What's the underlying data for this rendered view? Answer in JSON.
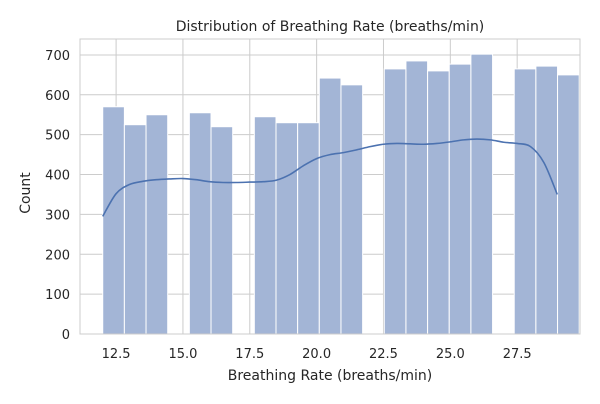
{
  "chart_data": {
    "type": "bar",
    "title": "Distribution of Breathing Rate (breaths/min)",
    "xlabel": "Breathing Rate (breaths/min)",
    "ylabel": "Count",
    "xlim": [
      11.15,
      29.85
    ],
    "ylim": [
      0,
      740
    ],
    "x_ticks": [
      12.5,
      15.0,
      17.5,
      20.0,
      22.5,
      25.0,
      27.5
    ],
    "x_tick_labels": [
      "12.5",
      "15.0",
      "17.5",
      "20.0",
      "22.5",
      "25.0",
      "27.5"
    ],
    "y_ticks": [
      0,
      100,
      200,
      300,
      400,
      500,
      600,
      700
    ],
    "y_tick_labels": [
      "0",
      "100",
      "200",
      "300",
      "400",
      "500",
      "600",
      "700"
    ],
    "grid": true,
    "bar_color": "#a3b5d6",
    "kde_color": "#4c72b0",
    "bins": [
      {
        "x0": 12.0,
        "x1": 12.81,
        "value": 570
      },
      {
        "x0": 12.81,
        "x1": 13.62,
        "value": 525
      },
      {
        "x0": 13.62,
        "x1": 14.43,
        "value": 550
      },
      {
        "x0": 14.43,
        "x1": 15.24,
        "value": 0
      },
      {
        "x0": 15.24,
        "x1": 16.05,
        "value": 555
      },
      {
        "x0": 16.05,
        "x1": 16.86,
        "value": 520
      },
      {
        "x0": 16.86,
        "x1": 17.67,
        "value": 0
      },
      {
        "x0": 17.67,
        "x1": 18.48,
        "value": 545
      },
      {
        "x0": 18.48,
        "x1": 19.29,
        "value": 530
      },
      {
        "x0": 19.29,
        "x1": 20.1,
        "value": 530
      },
      {
        "x0": 20.1,
        "x1": 20.91,
        "value": 642
      },
      {
        "x0": 20.91,
        "x1": 21.72,
        "value": 625
      },
      {
        "x0": 21.72,
        "x1": 22.53,
        "value": 0
      },
      {
        "x0": 22.53,
        "x1": 23.34,
        "value": 665
      },
      {
        "x0": 23.34,
        "x1": 24.15,
        "value": 685
      },
      {
        "x0": 24.15,
        "x1": 24.96,
        "value": 660
      },
      {
        "x0": 24.96,
        "x1": 25.77,
        "value": 677
      },
      {
        "x0": 25.77,
        "x1": 26.58,
        "value": 702
      },
      {
        "x0": 26.58,
        "x1": 27.39,
        "value": 0
      },
      {
        "x0": 27.39,
        "x1": 28.2,
        "value": 665
      },
      {
        "x0": 28.2,
        "x1": 29.01,
        "value": 672
      },
      {
        "x0": 29.01,
        "x1": 29.82,
        "value": 650
      }
    ],
    "kde": {
      "x": [
        12.0,
        12.5,
        13.0,
        13.5,
        14.0,
        14.5,
        15.0,
        15.5,
        16.0,
        16.5,
        17.0,
        17.5,
        18.0,
        18.5,
        19.0,
        19.5,
        20.0,
        20.5,
        21.0,
        21.5,
        22.0,
        22.5,
        23.0,
        23.5,
        24.0,
        24.5,
        25.0,
        25.5,
        26.0,
        26.5,
        27.0,
        27.5,
        28.0,
        28.5,
        29.0
      ],
      "y": [
        295,
        352,
        375,
        383,
        387,
        389,
        390,
        387,
        382,
        380,
        380,
        381,
        382,
        386,
        400,
        422,
        440,
        450,
        455,
        462,
        470,
        476,
        478,
        477,
        476,
        478,
        482,
        487,
        489,
        487,
        481,
        478,
        470,
        430,
        350
      ]
    }
  }
}
